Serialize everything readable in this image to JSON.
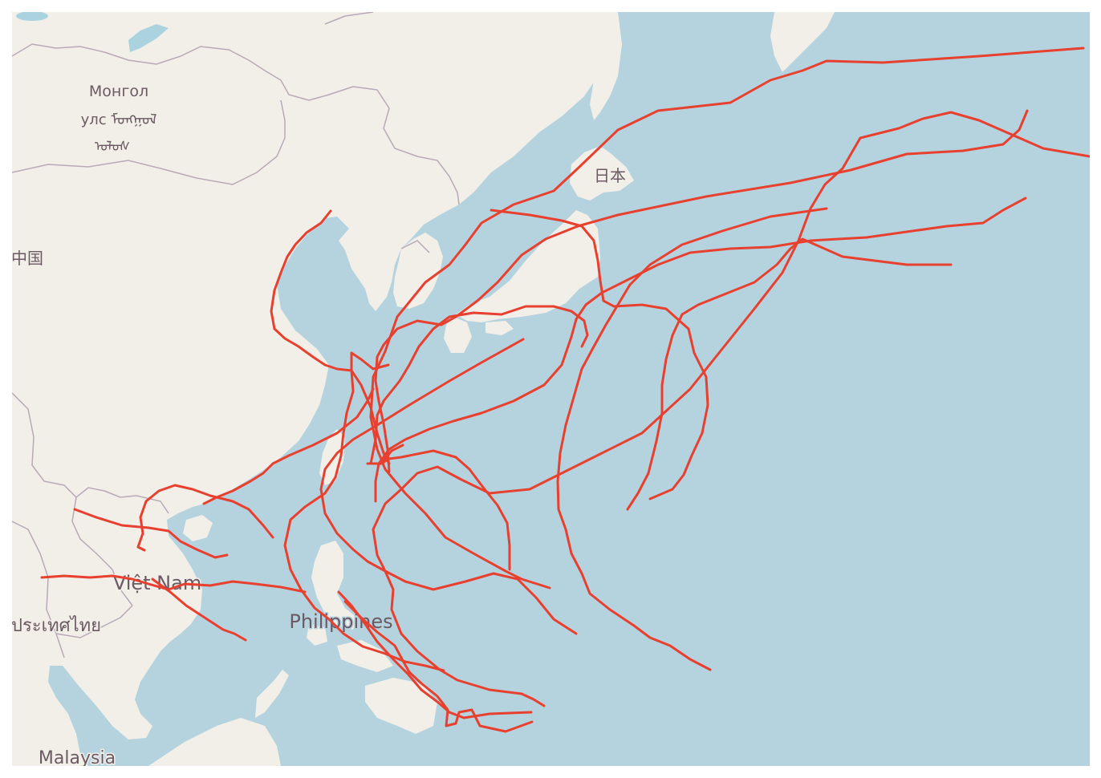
{
  "map": {
    "colors": {
      "water": "#b5d3df",
      "land": "#f2efe9",
      "border": "#b9a9b7",
      "lake": "#aad3df",
      "track": "#e8402f"
    },
    "labels": {
      "mongolia_line1": "Монгол",
      "mongolia_line2": "улс ᠮᠣᠩᠭᠣᠯ",
      "mongolia_line3": "ᠤᠯᠤᠰ",
      "china": "中国",
      "japan": "日本",
      "vietnam": "Việt Nam",
      "thailand": "ประเทศไทย",
      "philippines": "Philippines",
      "malaysia": "Malaysia"
    },
    "track_count": 19
  }
}
